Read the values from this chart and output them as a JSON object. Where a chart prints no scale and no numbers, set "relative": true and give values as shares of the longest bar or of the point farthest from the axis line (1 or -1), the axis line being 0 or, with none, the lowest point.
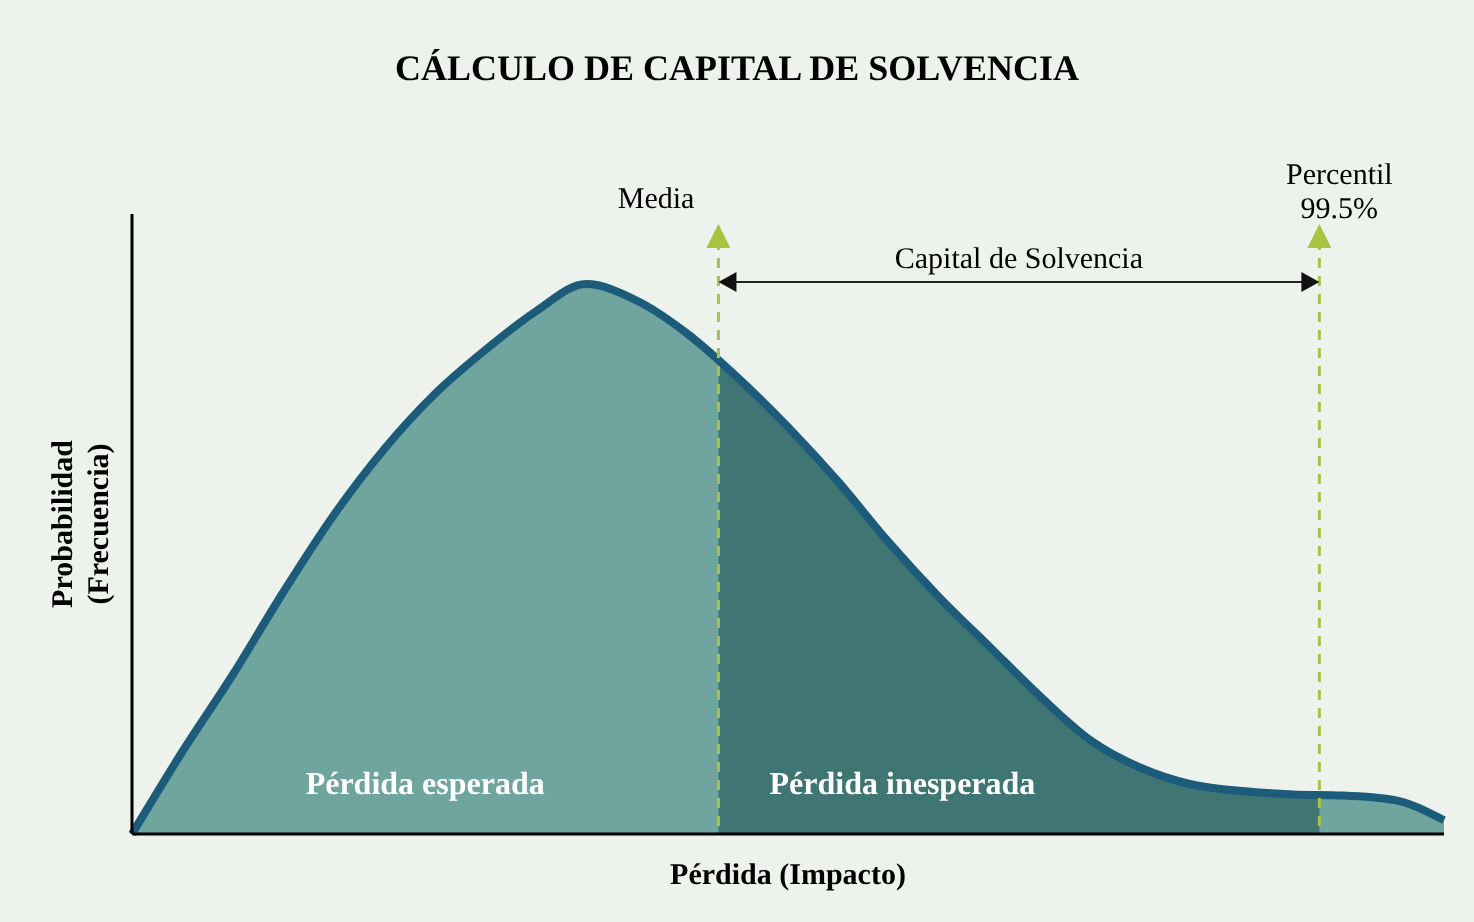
{
  "chart_data": {
    "type": "area",
    "title": "CÁLCULO DE CAPITAL DE SOLVENCIA",
    "xlabel": "Pérdida (Impacto)",
    "ylabel": "Probabilidad (Frecuencia)",
    "relative": true,
    "categories": [
      null,
      null,
      null,
      null,
      null,
      null,
      null,
      null,
      null,
      null,
      null,
      null,
      null,
      null,
      null,
      null,
      null,
      null,
      null,
      null,
      null,
      null,
      null,
      null,
      null,
      null,
      null
    ],
    "series": [
      {
        "color": "#6fa59e",
        "values": [
          0,
          0.15,
          0.29,
          0.44,
          0.58,
          0.7,
          0.8,
          0.88,
          0.95,
          1,
          0.97,
          0.91,
          0.83,
          0.74,
          0.64,
          0.53,
          0.43,
          0.34,
          0.25,
          0.17,
          0.12,
          0.09,
          0.078,
          0.072,
          0.07,
          0.062,
          0.025
        ]
      }
    ],
    "annotations": [
      "Media",
      "Percentil 99.5%",
      "Capital de Solvencia",
      "Pérdida esperada",
      "Pérdida inesperada"
    ]
  }
}
